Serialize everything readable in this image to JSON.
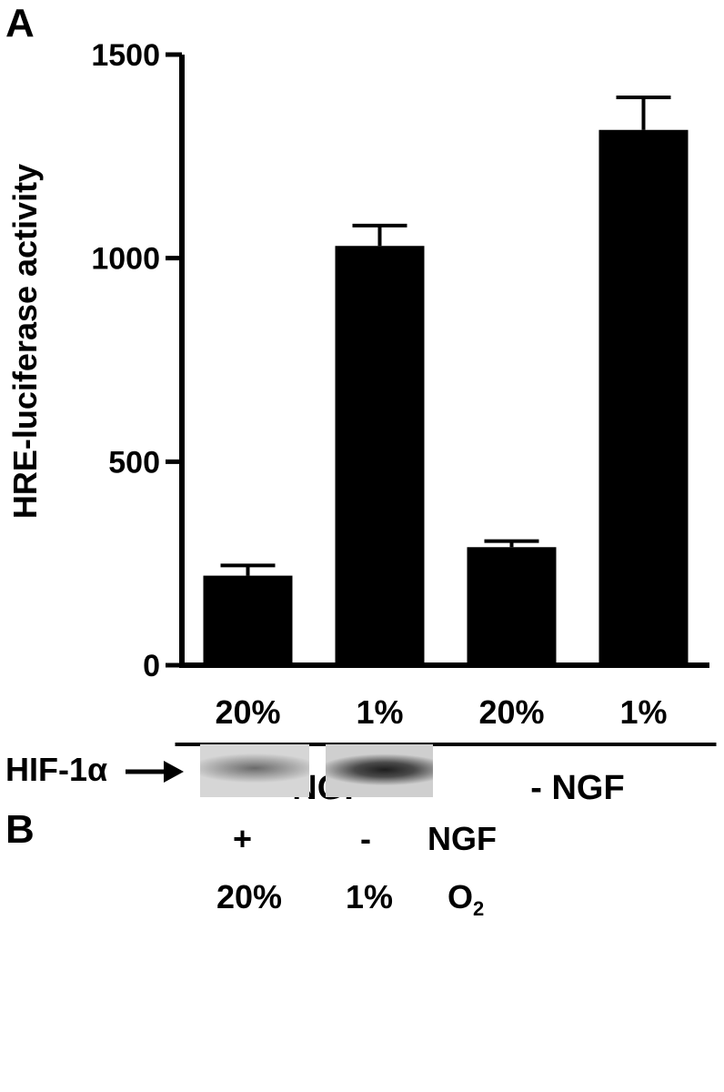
{
  "panel_a_letter": "A",
  "panel_b_letter": "B",
  "chart_data": {
    "type": "bar",
    "title": "",
    "xlabel": "",
    "ylabel": "HRE-luciferase activity",
    "ylim": [
      0,
      1500
    ],
    "yticks": [
      0,
      500,
      1000,
      1500
    ],
    "categories": [
      "20%",
      "1%",
      "20%",
      "1%"
    ],
    "values": [
      220,
      1030,
      290,
      1315
    ],
    "errors": [
      25,
      50,
      15,
      80
    ],
    "groups": [
      {
        "label": "+ NGF",
        "categories": [
          0,
          1
        ]
      },
      {
        "label": "- NGF",
        "categories": [
          2,
          3
        ]
      }
    ],
    "bar_color": "#000000",
    "grid": false,
    "legend": "none"
  },
  "blot": {
    "protein_label": "HIF-1α",
    "lane_ngf": [
      "+",
      "-"
    ],
    "lane_o2": [
      "20%",
      "1%"
    ],
    "row_label_ngf": "NGF",
    "row_label_o2_base": "O",
    "row_label_o2_sub": "2"
  }
}
